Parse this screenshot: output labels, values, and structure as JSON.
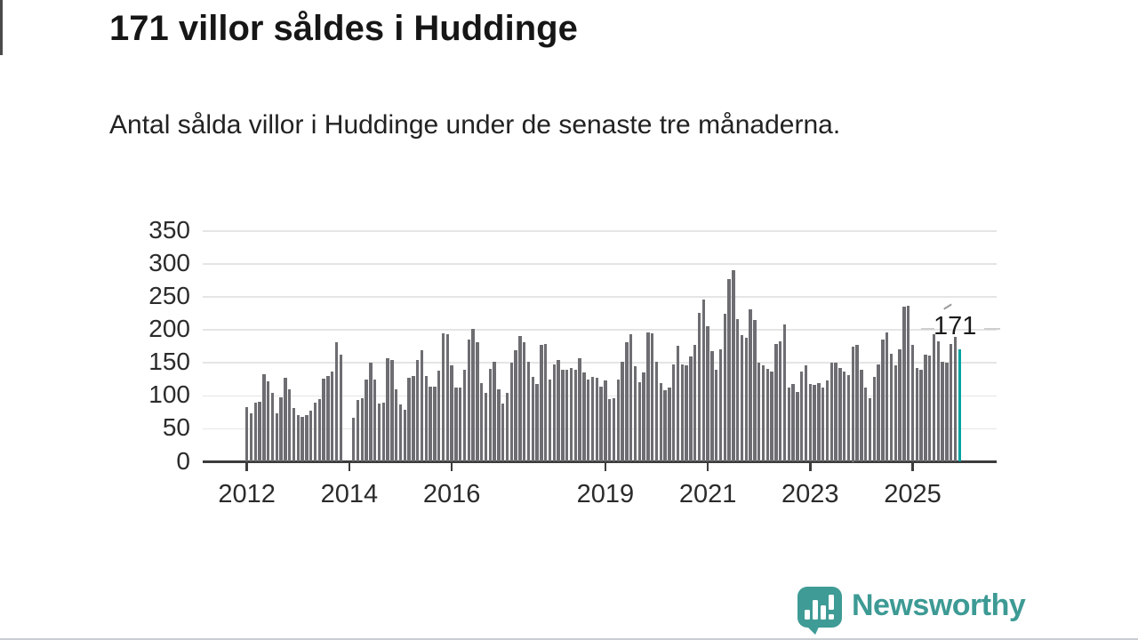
{
  "title": "171 villor såldes i Huddinge",
  "subtitle": "Antal sålda villor i Huddinge under de senaste tre månaderna.",
  "branding": {
    "name": "Newsworthy",
    "logo_icon": "bar-chart-speech-bubble-icon"
  },
  "colors": {
    "bar": "#6d6d72",
    "highlight_bar": "#00a2a0",
    "brand_teal": "#3d9a94",
    "grid": "#e5e5e5",
    "axis": "#3c3c3c",
    "text": "#161616"
  },
  "chart_data": {
    "type": "bar",
    "title": "171 villor såldes i Huddinge",
    "subtitle": "Antal sålda villor i Huddinge under de senaste tre månaderna.",
    "frequency": "monthly",
    "x_start": "2012-01",
    "x_end": "2025-12",
    "ylim": [
      0,
      350
    ],
    "yticks": [
      0,
      50,
      100,
      150,
      200,
      250,
      300,
      350
    ],
    "grid": "horizontal",
    "xtick_labels": [
      "2012",
      "2014",
      "2016",
      "2019",
      "2021",
      "2023",
      "2025"
    ],
    "xtick_month_index": [
      0,
      24,
      48,
      84,
      108,
      132,
      156
    ],
    "values": [
      83,
      74,
      90,
      91,
      133,
      122,
      104,
      74,
      98,
      128,
      110,
      81,
      71,
      68,
      71,
      78,
      90,
      95,
      126,
      130,
      137,
      181,
      162,
      null,
      null,
      67,
      94,
      96,
      125,
      150,
      125,
      88,
      90,
      157,
      155,
      110,
      87,
      79,
      128,
      130,
      155,
      169,
      130,
      114,
      114,
      138,
      195,
      194,
      146,
      112,
      112,
      140,
      186,
      202,
      182,
      120,
      104,
      141,
      152,
      110,
      89,
      104,
      150,
      169,
      191,
      181,
      152,
      129,
      118,
      177,
      179,
      125,
      148,
      155,
      140,
      140,
      142,
      140,
      157,
      136,
      125,
      129,
      127,
      114,
      124,
      95,
      97,
      125,
      152,
      181,
      194,
      145,
      121,
      136,
      196,
      195,
      152,
      120,
      108,
      112,
      148,
      176,
      148,
      147,
      160,
      177,
      226,
      246,
      206,
      168,
      140,
      170,
      224,
      277,
      290,
      217,
      192,
      188,
      231,
      215,
      151,
      146,
      141,
      137,
      179,
      183,
      208,
      112,
      118,
      106,
      137,
      146,
      118,
      116,
      120,
      113,
      123,
      150,
      151,
      142,
      137,
      132,
      175,
      177,
      139,
      112,
      97,
      129,
      148,
      185,
      196,
      164,
      146,
      170,
      235,
      237,
      178,
      142,
      140,
      163,
      161,
      194,
      183,
      152,
      151,
      179,
      189,
      171
    ],
    "highlight": {
      "index": 167,
      "value": 171,
      "label": "171"
    },
    "missing_months": [
      "2013-12",
      "2014-01"
    ],
    "legend": "none"
  }
}
